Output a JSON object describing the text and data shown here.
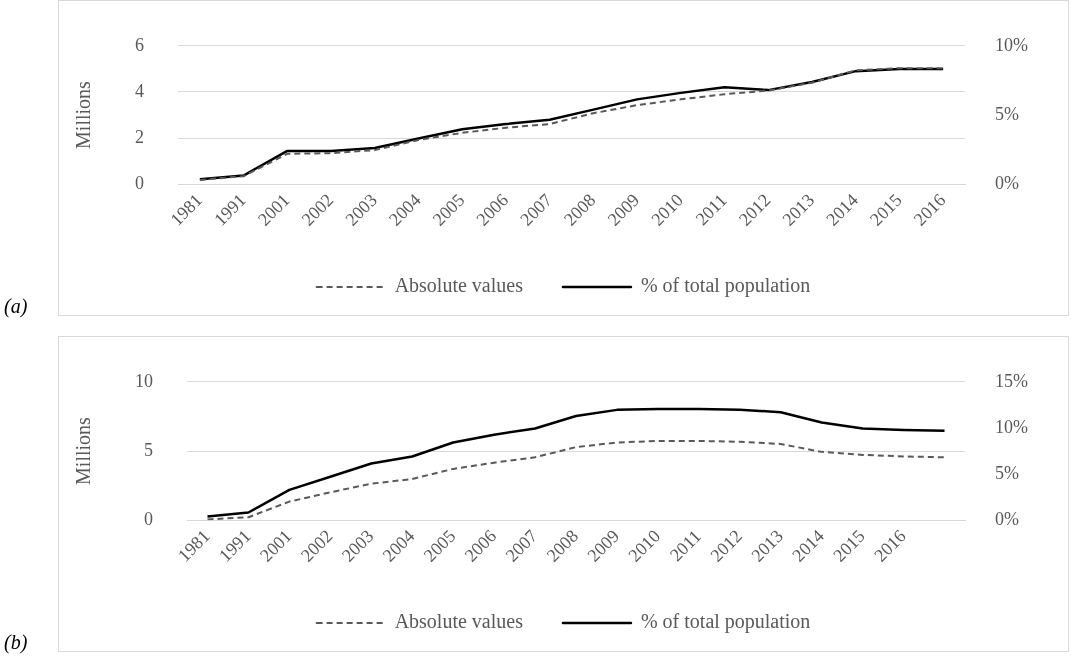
{
  "chart_data": [
    {
      "type": "line",
      "categories": [
        "1981",
        "1991",
        "2001",
        "2002",
        "2003",
        "2004",
        "2005",
        "2006",
        "2007",
        "2008",
        "2009",
        "2010",
        "2011",
        "2012",
        "2013",
        "2014",
        "2015",
        "2016"
      ],
      "ylabel": "Millions",
      "ylim": [
        0,
        6
      ],
      "yticks": [
        0,
        2,
        4,
        6
      ],
      "y2lim": [
        0,
        10
      ],
      "y2ticks": [
        {
          "value": 0,
          "label": "0%"
        },
        {
          "value": 5,
          "label": "5%"
        },
        {
          "value": 10,
          "label": "10%"
        }
      ],
      "grid": "y",
      "legend": "bottom",
      "marker": "none",
      "annotations": [
        "(a)"
      ],
      "series": [
        {
          "name": "Absolute values",
          "color": "#595959",
          "line_style": "dashed",
          "values": [
            0.19,
            0.35,
            1.32,
            1.35,
            1.48,
            1.92,
            2.23,
            2.45,
            2.61,
            3.08,
            3.43,
            3.68,
            3.9,
            4.06,
            4.4,
            4.94,
            5.03,
            5.03
          ]
        },
        {
          "name": "% of total population",
          "color": "#000000",
          "line_style": "solid",
          "axis": "y2",
          "values": [
            0.37,
            0.63,
            2.41,
            2.41,
            2.62,
            3.3,
            3.98,
            4.35,
            4.66,
            5.39,
            6.13,
            6.6,
            7.0,
            6.8,
            7.38,
            8.17,
            8.32,
            8.32
          ]
        }
      ]
    },
    {
      "type": "line",
      "categories": [
        "1981",
        "1991",
        "2001",
        "2002",
        "2003",
        "2004",
        "2005",
        "2006",
        "2007",
        "2008",
        "2009",
        "2010",
        "2011",
        "2012",
        "2013",
        "2014",
        "2015",
        "2016",
        null
      ],
      "ylabel": "Millions",
      "ylim": [
        0,
        10
      ],
      "yticks": [
        0,
        5,
        10
      ],
      "y2lim": [
        0,
        15
      ],
      "y2ticks": [
        {
          "value": 0,
          "label": "0%"
        },
        {
          "value": 5,
          "label": "5%"
        },
        {
          "value": 10,
          "label": "10%"
        },
        {
          "value": 15,
          "label": "15%"
        }
      ],
      "grid": "y",
      "legend": "bottom",
      "marker": "none",
      "annotations": [
        "(b)"
      ],
      "series": [
        {
          "name": "Absolute values",
          "color": "#595959",
          "line_style": "dashed",
          "values": [
            0.06,
            0.22,
            1.35,
            2.02,
            2.64,
            2.98,
            3.71,
            4.16,
            4.55,
            5.28,
            5.62,
            5.73,
            5.73,
            5.67,
            5.51,
            4.94,
            4.72,
            4.61,
            4.55
          ]
        },
        {
          "name": "% of total population",
          "color": "#000000",
          "line_style": "solid",
          "axis": "y2",
          "values": [
            0.42,
            0.84,
            3.29,
            4.72,
            6.15,
            6.91,
            8.42,
            9.27,
            9.94,
            11.3,
            11.96,
            12.05,
            12.05,
            11.96,
            11.71,
            10.6,
            9.94,
            9.77,
            9.69
          ]
        }
      ]
    }
  ]
}
